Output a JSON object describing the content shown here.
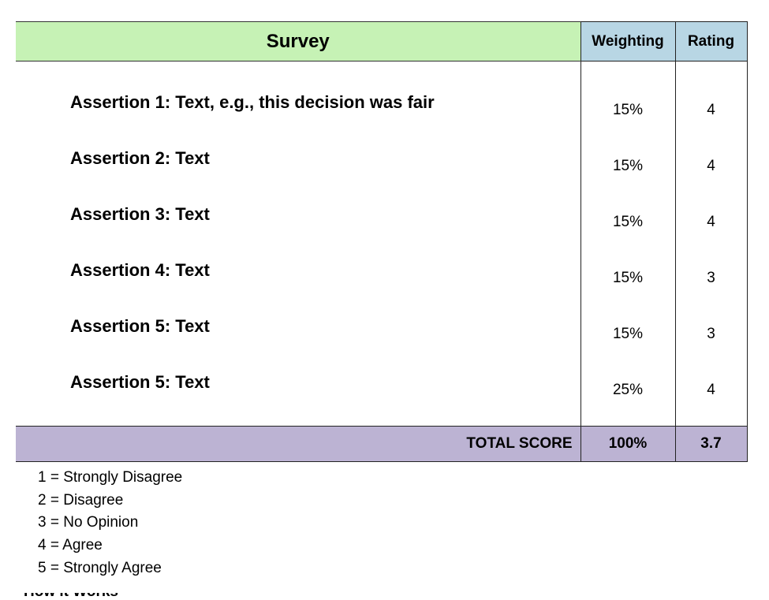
{
  "header": {
    "survey_title": "Survey",
    "weighting_label": "Weighting",
    "rating_label": "Rating"
  },
  "rows": [
    {
      "assertion": "Assertion 1: Text, e.g., this decision was fair",
      "weighting": "15%",
      "rating": "4"
    },
    {
      "assertion": "Assertion 2: Text",
      "weighting": "15%",
      "rating": "4"
    },
    {
      "assertion": "Assertion 3: Text",
      "weighting": "15%",
      "rating": "4"
    },
    {
      "assertion": "Assertion 4: Text",
      "weighting": "15%",
      "rating": "3"
    },
    {
      "assertion": "Assertion 5: Text",
      "weighting": "15%",
      "rating": "3"
    },
    {
      "assertion": "Assertion 5: Text",
      "weighting": "25%",
      "rating": "4"
    }
  ],
  "total": {
    "label": "TOTAL SCORE",
    "weighting": "100%",
    "rating": "3.7"
  },
  "legend": [
    "1 = Strongly Disagree",
    "2 = Disagree",
    "3 = No Opinion",
    "4 = Agree",
    "5 = Strongly Agree"
  ],
  "partial_bottom_text": "How it Works",
  "colors": {
    "survey_header": "#c6f2b5",
    "column_header": "#b8d6e4",
    "total_row": "#bcb3d3"
  }
}
